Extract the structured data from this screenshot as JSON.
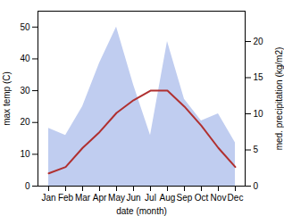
{
  "chart_data": {
    "type": "line",
    "categories": [
      "Jan",
      "Feb",
      "Mar",
      "Apr",
      "May",
      "Jun",
      "Jul",
      "Aug",
      "Sep",
      "Oct",
      "Nov",
      "Dec"
    ],
    "xlabel": "date (month)",
    "ylabel": "max temp (C)",
    "y2label": "med. precipitation (kg/m2)",
    "ylim": [
      0,
      55
    ],
    "yticks": [
      0,
      10,
      20,
      30,
      40,
      50
    ],
    "y2lim": [
      0,
      24.2
    ],
    "y2ticks": [
      0,
      5,
      10,
      15,
      20
    ],
    "series": [
      {
        "type": "area",
        "color": "#c0cdf0",
        "values": [
          8,
          7,
          11,
          17,
          22,
          14,
          7,
          20,
          12,
          9,
          10,
          6
        ],
        "axis": "y2"
      },
      {
        "type": "line",
        "color": "#b03030",
        "values": [
          4,
          6,
          12,
          17,
          23,
          27,
          30,
          30,
          25,
          19,
          12,
          6
        ]
      }
    ]
  }
}
